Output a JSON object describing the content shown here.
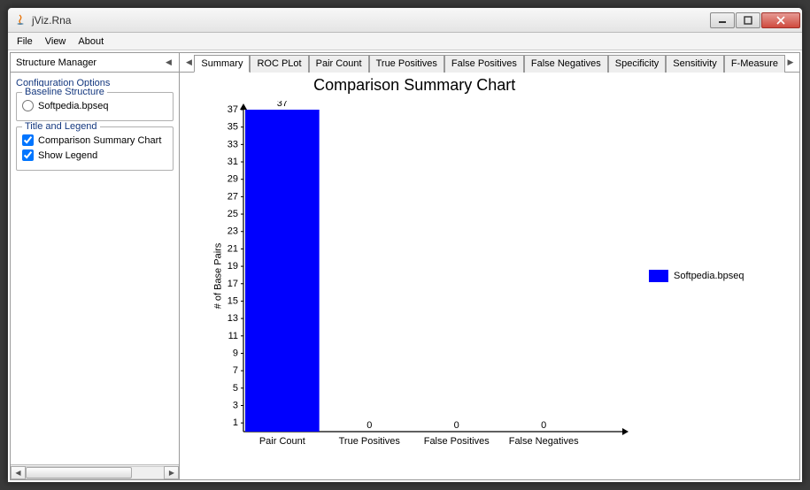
{
  "window": {
    "title": "jViz.Rna"
  },
  "menubar": [
    "File",
    "View",
    "About"
  ],
  "structure_manager": {
    "title": "Structure Manager"
  },
  "config": {
    "title": "Configuration Options",
    "baseline": {
      "legend": "Baseline Structure",
      "option": "Softpedia.bpseq",
      "selected": false
    },
    "title_legend": {
      "legend": "Title and Legend",
      "show_title": {
        "label": "Comparison Summary Chart",
        "checked": true
      },
      "show_legend": {
        "label": "Show Legend",
        "checked": true
      }
    }
  },
  "tabs": {
    "items": [
      "Summary",
      "ROC PLot",
      "Pair Count",
      "True Positives",
      "False Positives",
      "False Negatives",
      "Specificity",
      "Sensitivity",
      "F-Measure"
    ],
    "active": 0
  },
  "chart": {
    "type": "bar",
    "title": "Comparison Summary Chart",
    "title_fontsize": 18,
    "y_label": "# of Base Pairs",
    "categories": [
      "Pair Count",
      "True Positives",
      "False Positives",
      "False Negatives"
    ],
    "values": [
      37,
      0,
      0,
      0
    ],
    "value_labels": [
      "37",
      "0",
      "0",
      "0"
    ],
    "bar_color": "#0000fe",
    "axis_color": "#000000",
    "background_color": "#ffffff",
    "y_ticks": [
      1,
      3,
      5,
      7,
      9,
      11,
      13,
      15,
      17,
      19,
      21,
      23,
      25,
      27,
      29,
      31,
      33,
      35,
      37
    ],
    "ymin": 0,
    "ymax": 37,
    "bar_width": 0.85,
    "label_fontsize": 10
  },
  "legend": {
    "items": [
      {
        "label": "Softpedia.bpseq",
        "color": "#0000fe"
      }
    ]
  }
}
